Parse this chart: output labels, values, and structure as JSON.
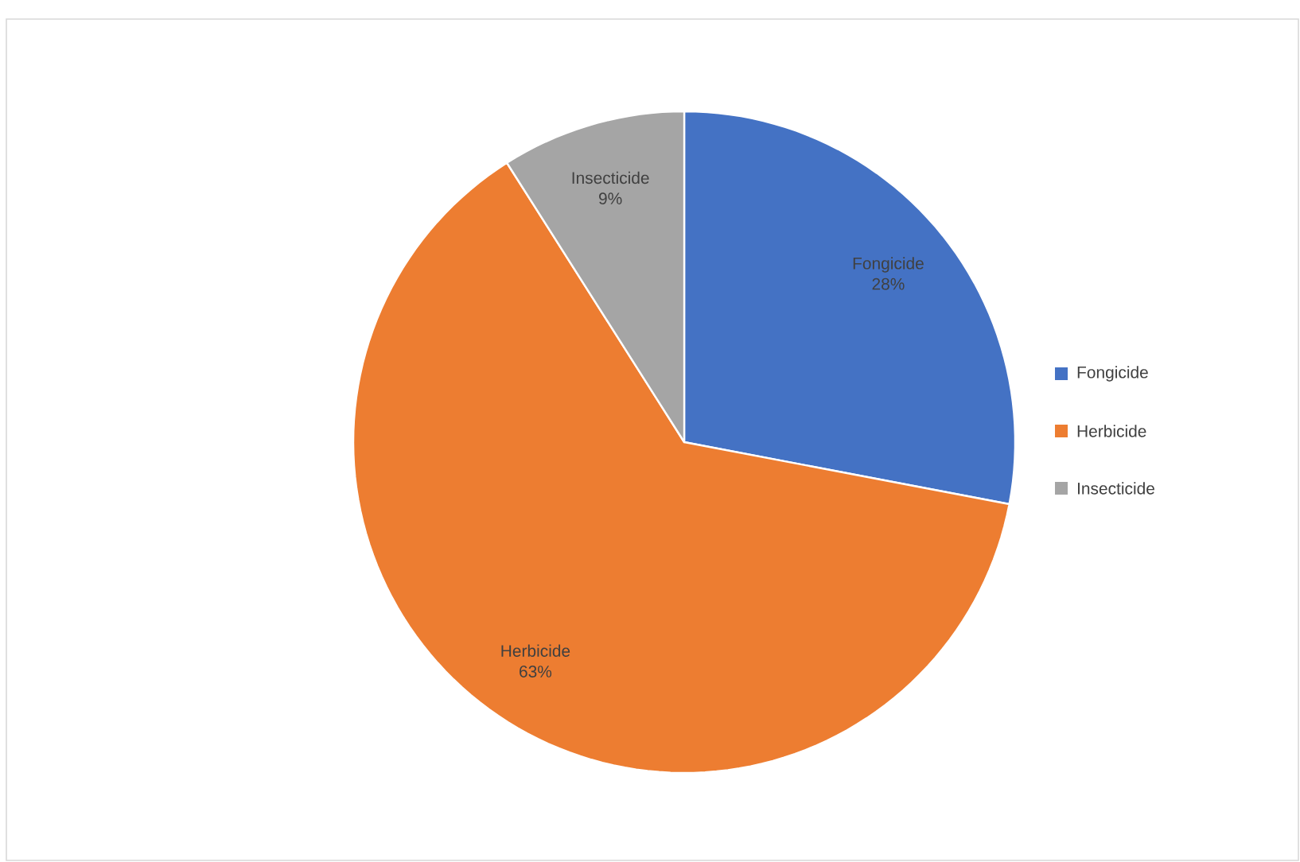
{
  "chart_data": {
    "type": "pie",
    "categories": [
      "Fongicide",
      "Herbicide",
      "Insecticide"
    ],
    "values": [
      28,
      63,
      9
    ],
    "value_labels": [
      "28%",
      "63%",
      "9%"
    ],
    "colors": [
      "#4472c4",
      "#ed7d31",
      "#a5a5a5"
    ],
    "legend": "right"
  }
}
